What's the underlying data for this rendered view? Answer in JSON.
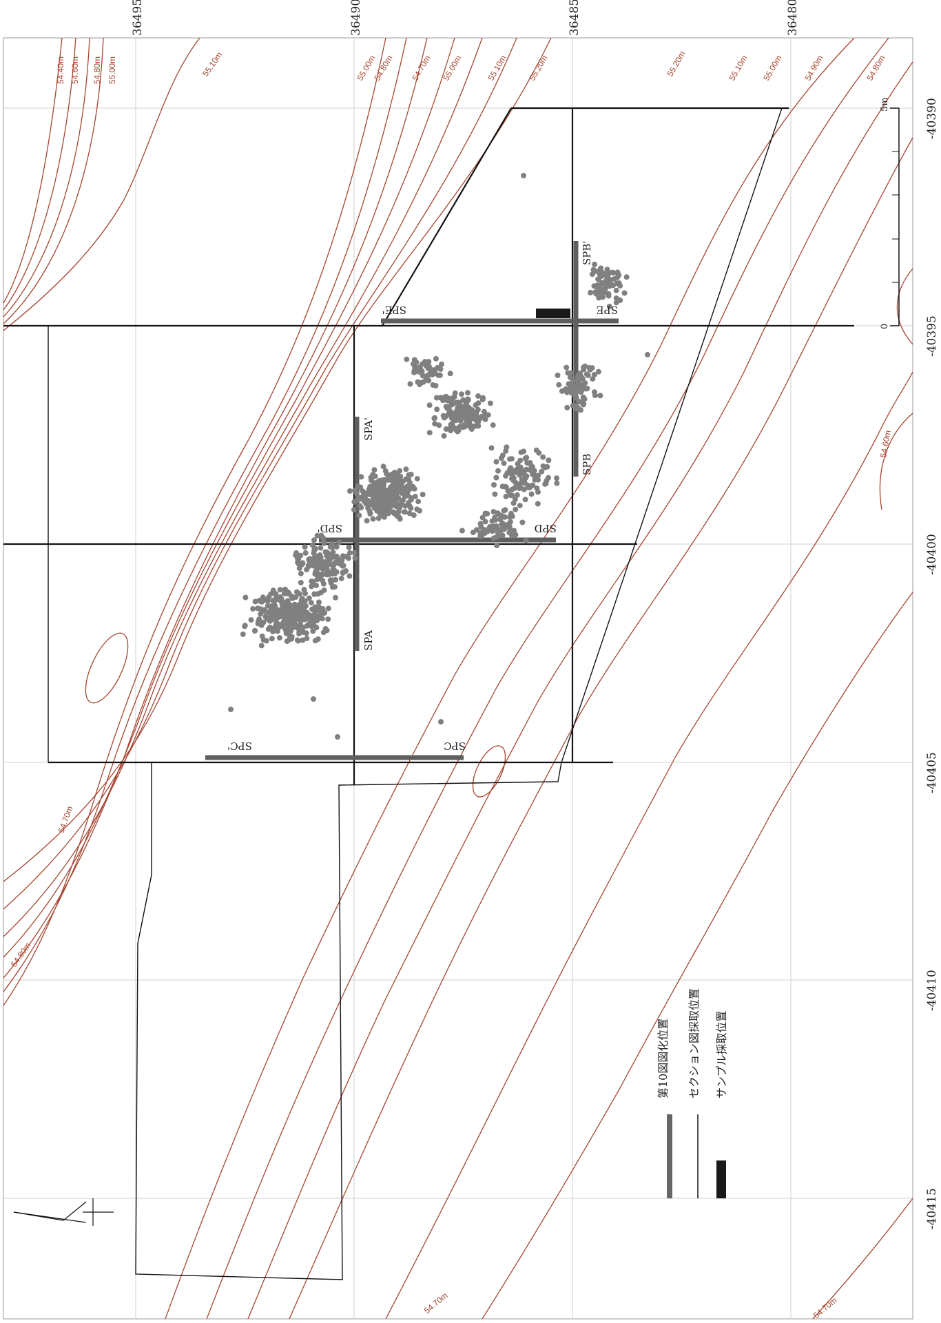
{
  "axes": {
    "top_labels": [
      "36495",
      "36490",
      "36485",
      "36480"
    ],
    "right_labels": [
      "-40390",
      "-40395",
      "-40400",
      "-40405",
      "-40410",
      "-40415"
    ]
  },
  "contour_labels": [
    "54.40m",
    "54.60m",
    "54.80m",
    "55.00m",
    "55.10m",
    "55.00m",
    "54.80m",
    "54.70m",
    "55.00m",
    "55.10m",
    "55.20m",
    "55.20m",
    "55.10m",
    "55.00m",
    "54.90m",
    "54.80m",
    "54.60m",
    "54.70m",
    "54.80m",
    "54.70m",
    "54.70m"
  ],
  "sections": {
    "spa_a": "SPA",
    "spa_b": "SPA'",
    "spb_a": "SPB",
    "spb_b": "SPB'",
    "spc_a": "SPC",
    "spc_b": "SPC'",
    "spd_a": "SPD",
    "spd_b": "SPD'",
    "spe_a": "SPE",
    "spe_b": "SPE'"
  },
  "scale": {
    "zero": "0",
    "five": "5m"
  },
  "legend": {
    "item1": "第10図図化位置",
    "item2": "セクション図採取位置",
    "item3": "サンプル採取位置"
  },
  "colors": {
    "contour": "#a5442f",
    "points": "#808080",
    "bars": "#5f5f5f",
    "sample": "#1a1a1a"
  }
}
